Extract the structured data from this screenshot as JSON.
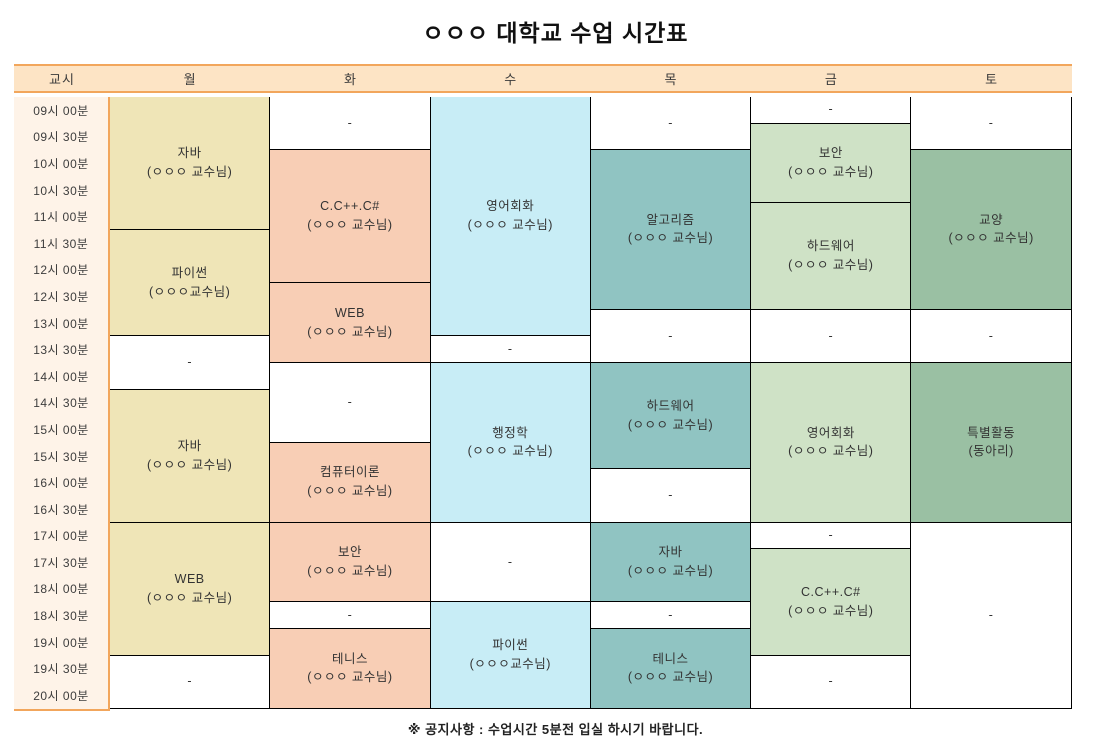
{
  "title": "ㅇㅇㅇ 대학교 수업 시간표",
  "footer_notice": "※ 공지사항 : 수업시간 5분전 입실 하시기 바랍니다.",
  "colors": {
    "header_bg": "#FDE4C5",
    "header_border": "#F2A65C",
    "time_column_bg": "#FEF3E8",
    "grid_border": "#000000",
    "empty_cell_bg": "#FFFFFF",
    "monday": "#EFE5B7",
    "tuesday": "#F8CEB5",
    "wednesday": "#C8EDF6",
    "thursday": "#90C4C2",
    "friday": "#CFE2C6",
    "saturday": "#9AC0A3"
  },
  "timetable": {
    "period_header": "교시",
    "times": [
      "09시 00분",
      "09시 30분",
      "10시 00분",
      "10시 30분",
      "11시 00분",
      "11시 30분",
      "12시 00분",
      "12시 30분",
      "13시 00분",
      "13시 30분",
      "14시 00분",
      "14시 30분",
      "15시 00분",
      "15시 30분",
      "16시 00분",
      "16시 30분",
      "17시 00분",
      "17시 30분",
      "18시 00분",
      "18시 30분",
      "19시 00분",
      "19시 30분",
      "20시 00분"
    ],
    "days": [
      {
        "label": "월",
        "color": "#EFE5B7",
        "blocks": [
          {
            "subject": "자바",
            "professor": "(ㅇㅇㅇ 교수님)",
            "rows": 5,
            "empty": false
          },
          {
            "subject": "파이썬",
            "professor": "(ㅇㅇㅇ교수님)",
            "rows": 4,
            "empty": false
          },
          {
            "subject": "-",
            "professor": "",
            "rows": 2,
            "empty": true
          },
          {
            "subject": "자바",
            "professor": "(ㅇㅇㅇ 교수님)",
            "rows": 5,
            "empty": false
          },
          {
            "subject": "WEB",
            "professor": "(ㅇㅇㅇ 교수님)",
            "rows": 5,
            "empty": false
          },
          {
            "subject": "-",
            "professor": "",
            "rows": 2,
            "empty": true
          }
        ]
      },
      {
        "label": "화",
        "color": "#F8CEB5",
        "blocks": [
          {
            "subject": "-",
            "professor": "",
            "rows": 2,
            "empty": true
          },
          {
            "subject": "C.C++.C#",
            "professor": "(ㅇㅇㅇ 교수님)",
            "rows": 5,
            "empty": false
          },
          {
            "subject": "WEB",
            "professor": "(ㅇㅇㅇ 교수님)",
            "rows": 3,
            "empty": false
          },
          {
            "subject": "-",
            "professor": "",
            "rows": 3,
            "empty": true
          },
          {
            "subject": "컴퓨터이론",
            "professor": "(ㅇㅇㅇ 교수님)",
            "rows": 3,
            "empty": false
          },
          {
            "subject": "보안",
            "professor": "(ㅇㅇㅇ 교수님)",
            "rows": 3,
            "empty": false
          },
          {
            "subject": "-",
            "professor": "",
            "rows": 1,
            "empty": true
          },
          {
            "subject": "테니스",
            "professor": "(ㅇㅇㅇ 교수님)",
            "rows": 3,
            "empty": false
          }
        ]
      },
      {
        "label": "수",
        "color": "#C8EDF6",
        "blocks": [
          {
            "subject": "영어회화",
            "professor": "(ㅇㅇㅇ 교수님)",
            "rows": 9,
            "empty": false
          },
          {
            "subject": "-",
            "professor": "",
            "rows": 1,
            "empty": true
          },
          {
            "subject": "행정학",
            "professor": "(ㅇㅇㅇ 교수님)",
            "rows": 6,
            "empty": false
          },
          {
            "subject": "-",
            "professor": "",
            "rows": 3,
            "empty": true
          },
          {
            "subject": "파이썬",
            "professor": "(ㅇㅇㅇ교수님)",
            "rows": 4,
            "empty": false
          }
        ]
      },
      {
        "label": "목",
        "color": "#90C4C2",
        "blocks": [
          {
            "subject": "-",
            "professor": "",
            "rows": 2,
            "empty": true
          },
          {
            "subject": "알고리즘",
            "professor": "(ㅇㅇㅇ 교수님)",
            "rows": 6,
            "empty": false
          },
          {
            "subject": "-",
            "professor": "",
            "rows": 2,
            "empty": true
          },
          {
            "subject": "하드웨어",
            "professor": "(ㅇㅇㅇ 교수님)",
            "rows": 4,
            "empty": false
          },
          {
            "subject": "-",
            "professor": "",
            "rows": 2,
            "empty": true
          },
          {
            "subject": "자바",
            "professor": "(ㅇㅇㅇ 교수님)",
            "rows": 3,
            "empty": false
          },
          {
            "subject": "-",
            "professor": "",
            "rows": 1,
            "empty": true
          },
          {
            "subject": "테니스",
            "professor": "(ㅇㅇㅇ 교수님)",
            "rows": 3,
            "empty": false
          }
        ]
      },
      {
        "label": "금",
        "color": "#CFE2C6",
        "blocks": [
          {
            "subject": "-",
            "professor": "",
            "rows": 1,
            "empty": true
          },
          {
            "subject": "보안",
            "professor": "(ㅇㅇㅇ 교수님)",
            "rows": 3,
            "empty": false
          },
          {
            "subject": "하드웨어",
            "professor": "(ㅇㅇㅇ 교수님)",
            "rows": 4,
            "empty": false
          },
          {
            "subject": "-",
            "professor": "",
            "rows": 2,
            "empty": true
          },
          {
            "subject": "영어회화",
            "professor": "(ㅇㅇㅇ 교수님)",
            "rows": 6,
            "empty": false
          },
          {
            "subject": "-",
            "professor": "",
            "rows": 1,
            "empty": true
          },
          {
            "subject": "C.C++.C#",
            "professor": "(ㅇㅇㅇ 교수님)",
            "rows": 4,
            "empty": false
          },
          {
            "subject": "-",
            "professor": "",
            "rows": 2,
            "empty": true
          }
        ]
      },
      {
        "label": "토",
        "color": "#9AC0A3",
        "blocks": [
          {
            "subject": "-",
            "professor": "",
            "rows": 2,
            "empty": true
          },
          {
            "subject": "교양",
            "professor": "(ㅇㅇㅇ 교수님)",
            "rows": 6,
            "empty": false
          },
          {
            "subject": "-",
            "professor": "",
            "rows": 2,
            "empty": true
          },
          {
            "subject": "특별활동",
            "professor": "(동아리)",
            "rows": 6,
            "empty": false
          },
          {
            "subject": "-",
            "professor": "",
            "rows": 7,
            "empty": true
          }
        ]
      }
    ]
  }
}
